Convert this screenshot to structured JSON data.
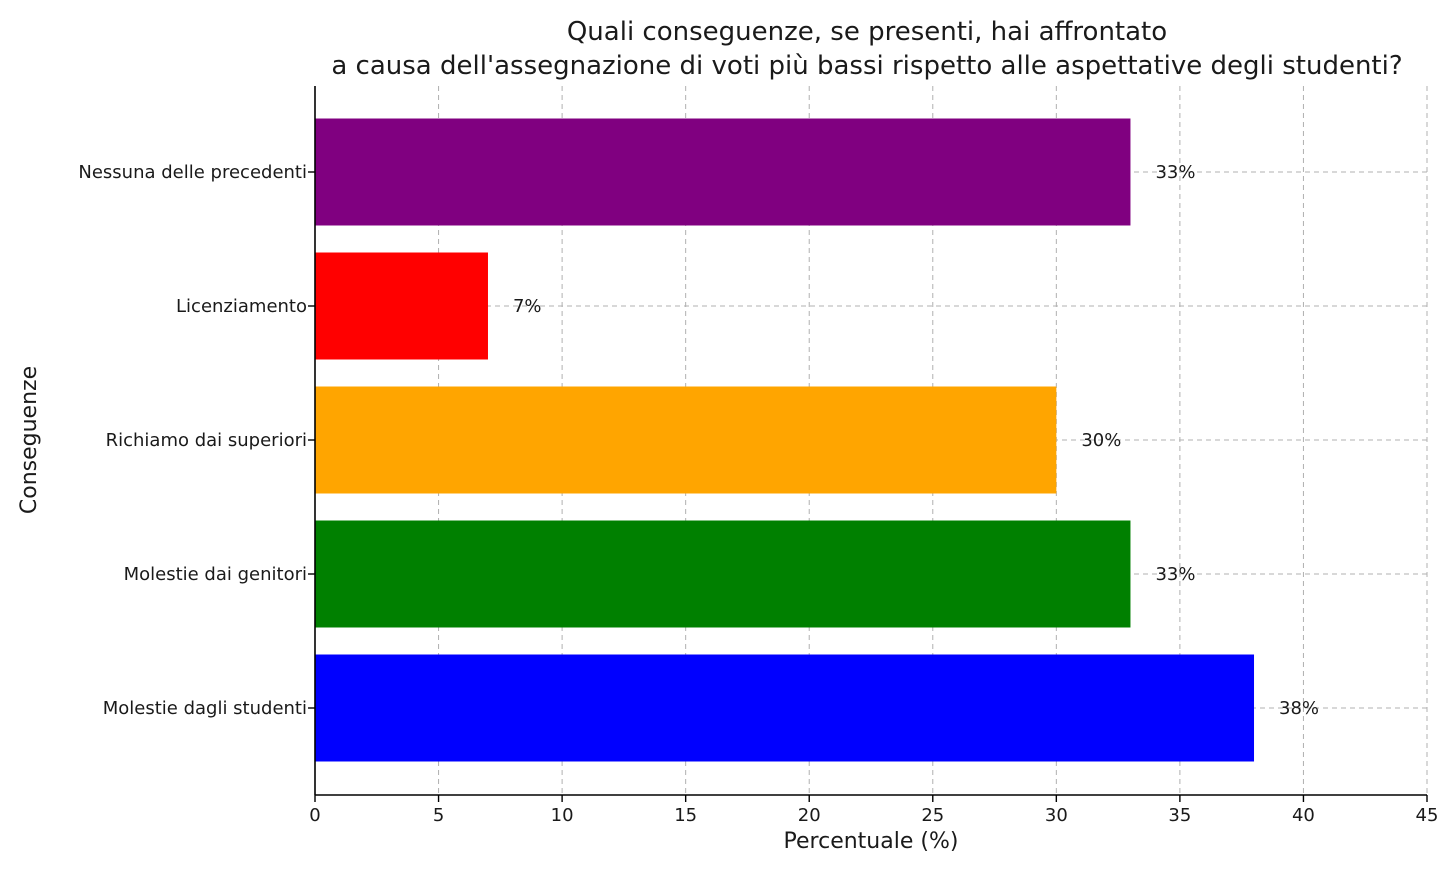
{
  "chart_data": {
    "type": "bar",
    "orientation": "horizontal",
    "title": [
      "Quali conseguenze, se presenti, hai affrontato",
      "a causa dell'assegnazione di voti più bassi rispetto alle aspettative degli studenti?"
    ],
    "xlabel": "Percentuale (%)",
    "ylabel": "Conseguenze",
    "xlim": [
      0,
      45
    ],
    "xticks": [
      0,
      5,
      10,
      15,
      20,
      25,
      30,
      35,
      40,
      45
    ],
    "grid": true,
    "categories": [
      "Molestie dagli studenti",
      "Molestie dai genitori",
      "Richiamo dai superiori",
      "Licenziamento",
      "Nessuna delle precedenti"
    ],
    "values": [
      38,
      33,
      30,
      7,
      33
    ],
    "data_labels": [
      "38%",
      "33%",
      "30%",
      "7%",
      "33%"
    ],
    "colors": [
      "#0000ff",
      "#008000",
      "#ffa500",
      "#ff0000",
      "#800080"
    ]
  }
}
